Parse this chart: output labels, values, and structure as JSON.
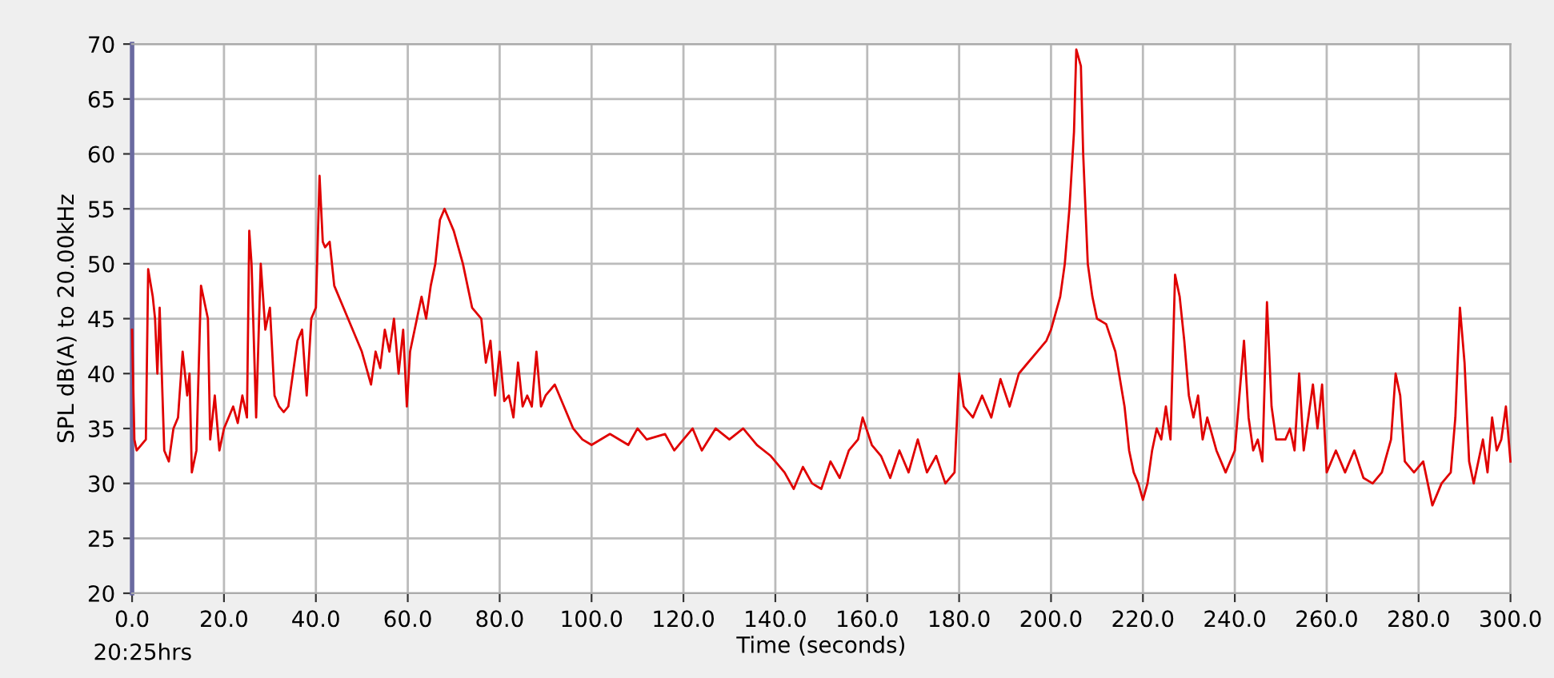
{
  "chart_data": {
    "type": "line",
    "xlabel": "Time (seconds)",
    "ylabel": "SPL dB(A) to 20.00kHz",
    "annotations": [
      "20:25hrs"
    ],
    "xlim": [
      0,
      300
    ],
    "ylim": [
      20,
      70
    ],
    "xticks": [
      {
        "value": 0,
        "label": "0.0"
      },
      {
        "value": 20,
        "label": "20.0"
      },
      {
        "value": 40,
        "label": "40.0"
      },
      {
        "value": 60,
        "label": "60.0"
      },
      {
        "value": 80,
        "label": "80.0"
      },
      {
        "value": 100,
        "label": "100.0"
      },
      {
        "value": 120,
        "label": "120.0"
      },
      {
        "value": 140,
        "label": "140.0"
      },
      {
        "value": 160,
        "label": "160.0"
      },
      {
        "value": 180,
        "label": "180.0"
      },
      {
        "value": 200,
        "label": "200.0"
      },
      {
        "value": 220,
        "label": "220.0"
      },
      {
        "value": 240,
        "label": "240.0"
      },
      {
        "value": 260,
        "label": "260.0"
      },
      {
        "value": 280,
        "label": "280.0"
      },
      {
        "value": 300,
        "label": "300.0"
      }
    ],
    "yticks": [
      20,
      25,
      30,
      35,
      40,
      45,
      50,
      55,
      60,
      65,
      70
    ],
    "grid": true,
    "legend": false,
    "marker": "none",
    "line_style": "solid",
    "series": [
      {
        "color": "#e00000",
        "x": [
          0,
          0.5,
          1,
          3,
          3.5,
          4.5,
          5,
          5.5,
          6,
          7,
          8,
          9,
          10,
          11,
          12,
          12.5,
          13,
          14,
          15,
          16,
          16.5,
          17,
          18,
          19,
          20,
          21,
          22,
          23,
          24,
          25,
          25.5,
          26,
          27,
          28,
          29,
          30,
          31,
          32,
          33,
          34,
          35,
          36,
          37,
          38,
          39,
          40,
          40.8,
          41.5,
          42,
          43,
          44,
          46,
          48,
          50,
          52,
          53,
          54,
          55,
          56,
          57,
          58,
          59,
          59.8,
          60.5,
          62,
          63,
          64,
          65,
          66,
          67,
          68,
          69,
          70,
          72,
          74,
          76,
          77,
          78,
          79,
          80,
          81,
          82,
          83,
          84,
          85,
          86,
          87,
          88,
          89,
          90,
          92,
          94,
          96,
          98,
          100,
          104,
          108,
          110,
          112,
          116,
          118,
          120,
          122,
          124,
          127,
          130,
          133,
          136,
          139,
          142,
          144,
          146,
          148,
          150,
          152,
          154,
          156,
          158,
          159,
          161,
          163,
          165,
          167,
          169,
          171,
          173,
          175,
          177,
          179,
          180,
          181,
          183,
          185,
          187,
          189,
          191,
          193,
          195,
          197,
          199,
          200,
          202,
          203,
          204,
          205,
          205.5,
          206.5,
          207,
          208,
          209,
          210,
          212,
          214,
          216,
          217,
          218,
          219,
          220,
          221,
          222,
          223,
          224,
          225,
          226,
          227,
          228,
          229,
          230,
          231,
          232,
          233,
          234,
          236,
          238,
          240,
          241,
          242,
          243,
          244,
          245,
          246,
          247,
          248,
          249,
          251,
          252,
          253,
          254,
          255,
          257,
          258,
          259,
          260,
          262,
          264,
          266,
          268,
          270,
          272,
          274,
          275,
          276,
          277,
          279,
          281,
          283,
          285,
          287,
          288,
          289,
          290,
          291,
          292,
          294,
          295,
          296,
          297,
          298,
          299,
          300
        ],
        "values": [
          44,
          34,
          33,
          34,
          49.5,
          47,
          45,
          40,
          46,
          33,
          32,
          35,
          36,
          42,
          38,
          40,
          31,
          33,
          48,
          46,
          45,
          34,
          38,
          33,
          35,
          36,
          37,
          35.5,
          38,
          36,
          53,
          50,
          36,
          50,
          44,
          46,
          38,
          37,
          36.5,
          37,
          40,
          43,
          44,
          38,
          45,
          46,
          58,
          52,
          51.5,
          52,
          48,
          46,
          44,
          42,
          39,
          42,
          40.5,
          44,
          42,
          45,
          40,
          44,
          37,
          42,
          45,
          47,
          45,
          48,
          50,
          54,
          55,
          54,
          53,
          50,
          46,
          45,
          41,
          43,
          38,
          42,
          37.5,
          38,
          36,
          41,
          37,
          38,
          37,
          42,
          37,
          38,
          39,
          37,
          35,
          34,
          33.5,
          34.5,
          33.5,
          35,
          34,
          34.5,
          33,
          34,
          35,
          33,
          35,
          34,
          35,
          33.5,
          32.5,
          31,
          29.5,
          31.5,
          30,
          29.5,
          32,
          30.5,
          33,
          34,
          36,
          33.5,
          32.5,
          30.5,
          33,
          31,
          34,
          31,
          32.5,
          30,
          31,
          40,
          37,
          36,
          38,
          36,
          39.5,
          37,
          40,
          41,
          42,
          43,
          44,
          47,
          50,
          55,
          62,
          69.5,
          68,
          60,
          50,
          47,
          45,
          44.5,
          42,
          37,
          33,
          31,
          30,
          28.5,
          30,
          33,
          35,
          34,
          37,
          34,
          49,
          47,
          43,
          38,
          36,
          38,
          34,
          36,
          33,
          31,
          33,
          38,
          43,
          36,
          33,
          34,
          32,
          46.5,
          37,
          34,
          34,
          35,
          33,
          40,
          33,
          39,
          35,
          39,
          31,
          33,
          31,
          33,
          30.5,
          30,
          31,
          34,
          40,
          38,
          32,
          31,
          32,
          28,
          30,
          31,
          36,
          46,
          41,
          32,
          30,
          34,
          31,
          36,
          33,
          34,
          37,
          32
        ]
      }
    ]
  }
}
